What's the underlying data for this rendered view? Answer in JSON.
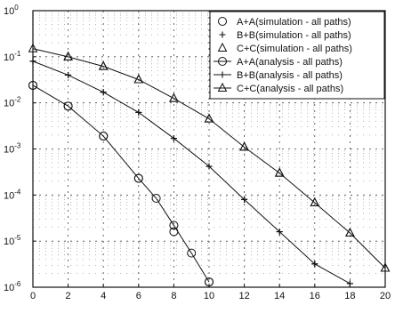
{
  "chart_data": {
    "type": "line",
    "title": "",
    "xlabel": "",
    "ylabel": "",
    "xlim": [
      0,
      20
    ],
    "ylim": [
      1e-06,
      1
    ],
    "yscale": "log",
    "grid": true,
    "legend_position": "top-right",
    "x_ticks": [
      0,
      2,
      4,
      6,
      8,
      10,
      12,
      14,
      16,
      18,
      20
    ],
    "y_ticks": [
      {
        "value": 1,
        "exp": "0"
      },
      {
        "value": 0.1,
        "exp": "-1"
      },
      {
        "value": 0.01,
        "exp": "-2"
      },
      {
        "value": 0.001,
        "exp": "-3"
      },
      {
        "value": 0.0001,
        "exp": "-4"
      },
      {
        "value": 1e-05,
        "exp": "-5"
      },
      {
        "value": 1e-06,
        "exp": "-6"
      }
    ],
    "y_tick_base": "10",
    "series": [
      {
        "name": "A+A(simulation - all paths)",
        "marker": "circle",
        "line": "none",
        "x": [
          0,
          2,
          4,
          6,
          8,
          10
        ],
        "y": [
          0.024,
          0.0085,
          0.0019,
          0.00023,
          1.6e-05,
          1.3e-06
        ]
      },
      {
        "name": "B+B(simulation - all paths)",
        "marker": "plus",
        "line": "none",
        "x": [
          0,
          2,
          4,
          6,
          8,
          10,
          12,
          14,
          16,
          18
        ],
        "y": [
          0.08,
          0.04,
          0.017,
          0.0062,
          0.0017,
          0.00042,
          8e-05,
          1.6e-05,
          3.2e-06,
          1.2e-06
        ]
      },
      {
        "name": "C+C(simulation - all paths)",
        "marker": "triangle",
        "line": "none",
        "x": [
          2,
          4,
          6,
          8,
          10,
          12,
          14,
          16,
          18,
          20
        ],
        "y": [
          0.1,
          0.062,
          0.032,
          0.0125,
          0.0045,
          0.0011,
          0.0003,
          6.8e-05,
          1.5e-05,
          2.6e-06
        ]
      },
      {
        "name": "A+A(analysis - all paths)",
        "marker": "circle",
        "line": "solid",
        "x": [
          0,
          2,
          4,
          6,
          7,
          8,
          9,
          10
        ],
        "y": [
          0.024,
          0.0085,
          0.0019,
          0.00023,
          8.5e-05,
          2.2e-05,
          5.5e-06,
          1.3e-06
        ]
      },
      {
        "name": "B+B(analysis - all paths)",
        "marker": "plus",
        "line": "solid",
        "x": [
          0,
          2,
          4,
          6,
          8,
          10,
          12,
          14,
          16,
          18
        ],
        "y": [
          0.08,
          0.04,
          0.017,
          0.0062,
          0.0017,
          0.00042,
          8e-05,
          1.6e-05,
          3.2e-06,
          1.2e-06
        ]
      },
      {
        "name": "C+C(analysis - all paths)",
        "marker": "triangle",
        "line": "solid",
        "x": [
          0,
          2,
          4,
          6,
          8,
          10,
          12,
          14,
          16,
          18,
          20
        ],
        "y": [
          0.15,
          0.1,
          0.062,
          0.032,
          0.0125,
          0.0045,
          0.0011,
          0.0003,
          6.8e-05,
          1.5e-05,
          2.6e-06
        ]
      }
    ]
  }
}
